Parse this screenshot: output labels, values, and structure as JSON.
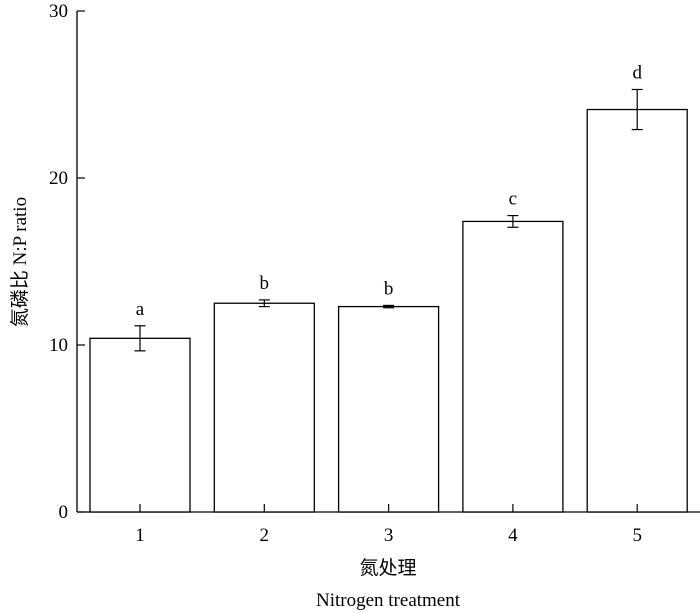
{
  "chart_data": {
    "type": "bar",
    "categories": [
      "1",
      "2",
      "3",
      "4",
      "5"
    ],
    "values": [
      10.4,
      12.5,
      12.3,
      17.4,
      24.1
    ],
    "errors": [
      0.75,
      0.2,
      0.07,
      0.35,
      1.2
    ],
    "significance_letters": [
      "a",
      "b",
      "b",
      "c",
      "d"
    ],
    "ylim": [
      0,
      30
    ],
    "yticks": [
      0,
      10,
      20,
      30
    ],
    "grid": false,
    "bar_fill": "#ffffff",
    "bar_stroke": "#000000",
    "ylabel": "氮磷比  N:P ratio",
    "xlabel_zh": "氮处理",
    "xlabel_en": "Nitrogen treatment"
  }
}
